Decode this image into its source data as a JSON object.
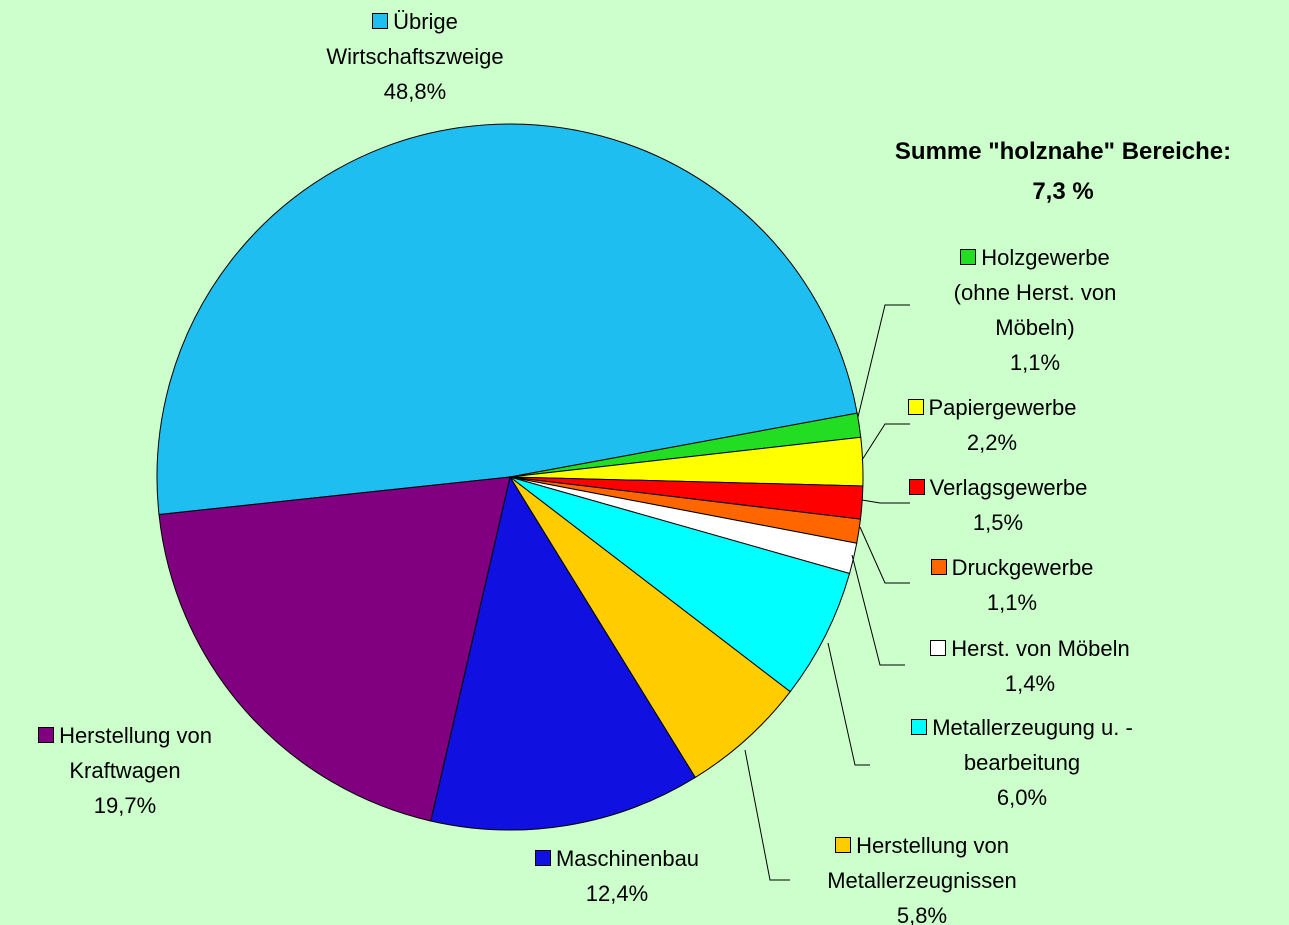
{
  "chart_data": {
    "type": "pie",
    "categories": [
      "Übrige Wirtschaftszweige",
      "Holzgewerbe (ohne Herst. von Möbeln)",
      "Papiergewerbe",
      "Verlagsgewerbe",
      "Druckgewerbe",
      "Herst. von Möbeln",
      "Metallerzeugung u. - bearbeitung",
      "Herstellung von Metallerzeugnissen",
      "Maschinenbau",
      "Herstellung von Kraftwagen"
    ],
    "values": [
      48.8,
      1.1,
      2.2,
      1.5,
      1.1,
      1.4,
      6.0,
      5.8,
      12.4,
      19.7
    ],
    "value_labels": [
      "48,8%",
      "1,1%",
      "2,2%",
      "1,5%",
      "1,1%",
      "1,4%",
      "6,0%",
      "5,8%",
      "12,4%",
      "19,7%"
    ],
    "colors": [
      "#1ebef0",
      "#22dd22",
      "#ffff00",
      "#ff0000",
      "#ff6600",
      "#ffffff",
      "#00ffff",
      "#ffcc00",
      "#1010e0",
      "#800080"
    ],
    "annotation": [
      "Summe \"holznahe\" Bereiche:",
      "7,3 %"
    ]
  }
}
